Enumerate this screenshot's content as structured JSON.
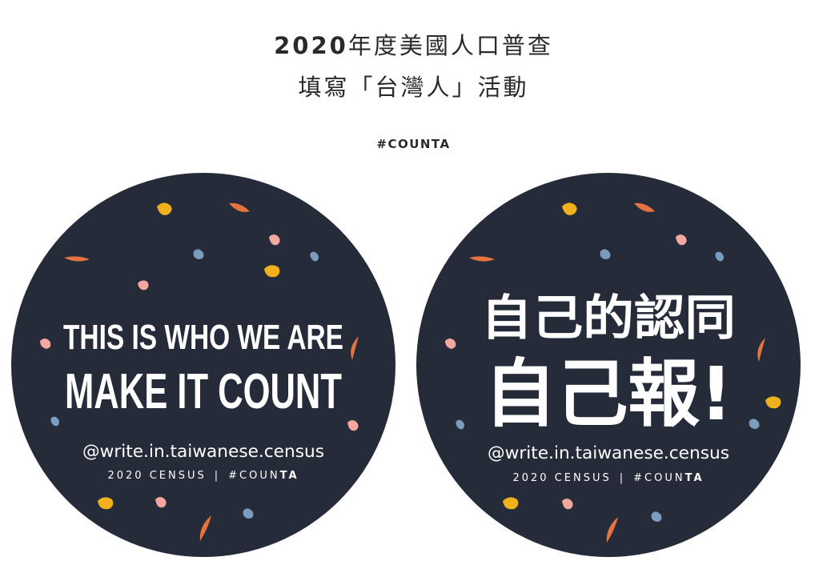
{
  "header": {
    "title_year": "2020",
    "title_rest": "年度美國人口普查",
    "subtitle": "填寫「台灣人」活動",
    "hashtag": "#COUNTA"
  },
  "stickers": [
    {
      "line1": "THIS IS WHO WE ARE",
      "line2": "MAKE IT COUNT",
      "handle": "@write.in.taiwanese.census",
      "footer_census": "2020 CENSUS",
      "footer_sep": "|",
      "footer_tag": "#COUN",
      "footer_tag_bold": "TA"
    },
    {
      "line1": "自己的認同",
      "line2": "自己報!",
      "handle": "@write.in.taiwanese.census",
      "footer_census": "2020 CENSUS",
      "footer_sep": "|",
      "footer_tag": "#COUN",
      "footer_tag_bold": "TA"
    }
  ],
  "colors": {
    "badge_bg": "#252b39",
    "text": "#ffffff",
    "confetti_yellow": "#f1b11c",
    "confetti_orange": "#e4733f",
    "confetti_pink": "#f2a7a0",
    "confetti_blue": "#7a9cbf",
    "heading": "#2a2a2a"
  }
}
